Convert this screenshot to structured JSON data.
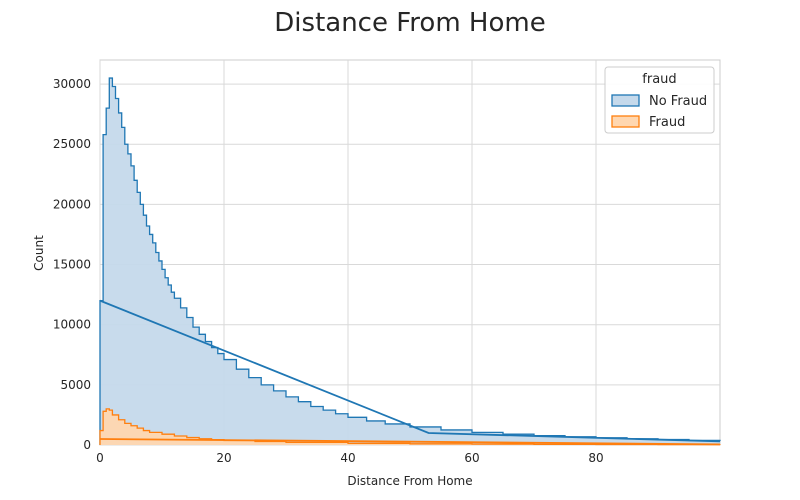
{
  "chart_data": {
    "type": "area",
    "title": "Distance From Home",
    "xlabel": "Distance From Home",
    "ylabel": "Count",
    "xlim": [
      0,
      100
    ],
    "ylim": [
      0,
      32000
    ],
    "x_ticks": [
      0,
      20,
      40,
      60,
      80
    ],
    "y_ticks": [
      0,
      5000,
      10000,
      15000,
      20000,
      25000,
      30000
    ],
    "grid": true,
    "legend": {
      "title": "fraud",
      "placement": "top-right"
    },
    "bin_width": 0.5,
    "series": [
      {
        "name": "No Fraud",
        "color": "#1f77b4",
        "fill": "#c5d9eb",
        "histogram": [
          [
            0,
            12000
          ],
          [
            0.5,
            25800
          ],
          [
            1,
            28000
          ],
          [
            1.5,
            30500
          ],
          [
            2,
            29800
          ],
          [
            2.5,
            28800
          ],
          [
            3,
            27600
          ],
          [
            3.5,
            26400
          ],
          [
            4,
            25000
          ],
          [
            4.5,
            24200
          ],
          [
            5,
            23200
          ],
          [
            5.5,
            22000
          ],
          [
            6,
            21000
          ],
          [
            6.5,
            20000
          ],
          [
            7,
            19100
          ],
          [
            7.5,
            18200
          ],
          [
            8,
            17500
          ],
          [
            8.5,
            16800
          ],
          [
            9,
            16000
          ],
          [
            9.5,
            15300
          ],
          [
            10,
            14600
          ],
          [
            10.5,
            13900
          ],
          [
            11,
            13300
          ],
          [
            11.5,
            12700
          ],
          [
            12,
            12200
          ],
          [
            13,
            11400
          ],
          [
            14,
            10600
          ],
          [
            15,
            9800
          ],
          [
            16,
            9200
          ],
          [
            17,
            8600
          ],
          [
            18,
            8100
          ],
          [
            19,
            7600
          ],
          [
            20,
            7100
          ],
          [
            22,
            6300
          ],
          [
            24,
            5600
          ],
          [
            26,
            5000
          ],
          [
            28,
            4500
          ],
          [
            30,
            4000
          ],
          [
            32,
            3600
          ],
          [
            34,
            3200
          ],
          [
            36,
            2900
          ],
          [
            38,
            2600
          ],
          [
            40,
            2300
          ],
          [
            43,
            2000
          ],
          [
            46,
            1750
          ],
          [
            50,
            1500
          ],
          [
            55,
            1250
          ],
          [
            60,
            1050
          ],
          [
            65,
            900
          ],
          [
            70,
            780
          ],
          [
            75,
            680
          ],
          [
            80,
            600
          ],
          [
            85,
            520
          ],
          [
            90,
            450
          ],
          [
            95,
            380
          ],
          [
            100,
            320
          ]
        ],
        "trend_line": [
          [
            0,
            12000
          ],
          [
            53,
            1000
          ],
          [
            100,
            300
          ]
        ]
      },
      {
        "name": "Fraud",
        "color": "#ff7f0e",
        "fill": "#ffd7b0",
        "histogram": [
          [
            0,
            1200
          ],
          [
            0.5,
            2800
          ],
          [
            1,
            3000
          ],
          [
            1.5,
            2900
          ],
          [
            2,
            2500
          ],
          [
            3,
            2100
          ],
          [
            4,
            1800
          ],
          [
            5,
            1600
          ],
          [
            6,
            1400
          ],
          [
            7,
            1200
          ],
          [
            8,
            1050
          ],
          [
            10,
            900
          ],
          [
            12,
            750
          ],
          [
            14,
            620
          ],
          [
            16,
            520
          ],
          [
            18,
            440
          ],
          [
            20,
            380
          ],
          [
            25,
            290
          ],
          [
            30,
            220
          ],
          [
            40,
            140
          ],
          [
            50,
            100
          ],
          [
            60,
            70
          ],
          [
            70,
            50
          ],
          [
            80,
            40
          ],
          [
            90,
            30
          ],
          [
            100,
            25
          ]
        ],
        "trend_line": [
          [
            0,
            500
          ],
          [
            100,
            50
          ]
        ]
      }
    ]
  }
}
